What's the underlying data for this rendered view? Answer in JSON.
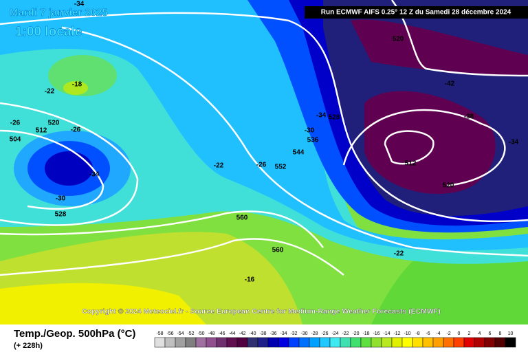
{
  "header": {
    "date": "Mardi 7 janvier 2025",
    "time": "1:00 locale",
    "run": "Run ECMWF AIFS 0.25° 12 Z du Samedi 28 décembre 2024"
  },
  "map": {
    "labels": [
      -34,
      520,
      -42,
      -38,
      -34,
      512,
      520,
      -22,
      -34,
      528,
      -30,
      536,
      544,
      552,
      -26,
      -22,
      560,
      560,
      -16,
      -18,
      -22,
      -26,
      520,
      -26,
      512,
      504,
      -34,
      -30,
      528
    ],
    "copyright": "Copyright © 2024 Meteociel.fr - Source European Centre for Medium-Range Weather Forecasts (ECMWF)"
  },
  "footer": {
    "parameter": "Temp./Geop. 500hPa (°C)",
    "lead": "(+ 228h)"
  },
  "legend": {
    "ticks": [
      -58,
      -56,
      -54,
      -52,
      -50,
      -48,
      -46,
      -44,
      -42,
      -40,
      -38,
      -36,
      -34,
      -32,
      -30,
      -28,
      -26,
      -24,
      -22,
      -20,
      -18,
      -16,
      -14,
      -12,
      -10,
      -8,
      -6,
      -4,
      -2,
      0,
      2,
      4,
      6,
      8,
      10
    ],
    "colors": [
      "#e0e0e0",
      "#c0c0c0",
      "#a0a0a0",
      "#808080",
      "#a070a0",
      "#905090",
      "#703070",
      "#601050",
      "#500040",
      "#303070",
      "#20208a",
      "#0000b0",
      "#0000e0",
      "#0040ff",
      "#0070ff",
      "#00a0ff",
      "#20c8ff",
      "#40e8f0",
      "#40e0b0",
      "#40e070",
      "#60e040",
      "#90e030",
      "#b8e820",
      "#e0f000",
      "#ffff00",
      "#ffe000",
      "#ffc000",
      "#ffa000",
      "#ff7000",
      "#ff4000",
      "#e00000",
      "#b00000",
      "#800000",
      "#500000",
      "#000000"
    ]
  }
}
